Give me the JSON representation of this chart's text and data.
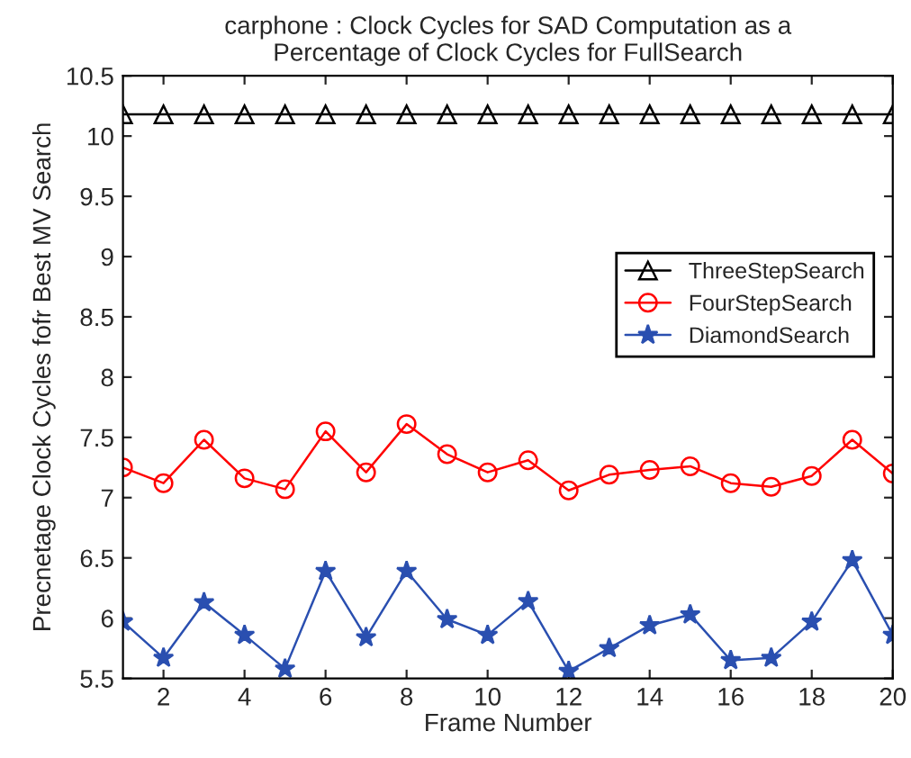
{
  "chart_data": {
    "type": "line",
    "title": "carphone : Clock Cycles for SAD Computation as a\nPercentage of Clock Cycles for FullSearch",
    "xlabel": "Frame Number",
    "ylabel": "Precnetage Clock Cycles fofr Best MV Search",
    "x": [
      1,
      2,
      3,
      4,
      5,
      6,
      7,
      8,
      9,
      10,
      11,
      12,
      13,
      14,
      15,
      16,
      17,
      18,
      19,
      20
    ],
    "series": [
      {
        "name": "ThreeStepSearch",
        "color": "#000000",
        "marker": "triangle",
        "values": [
          10.18,
          10.18,
          10.18,
          10.18,
          10.18,
          10.18,
          10.18,
          10.18,
          10.18,
          10.18,
          10.18,
          10.18,
          10.18,
          10.18,
          10.18,
          10.18,
          10.18,
          10.18,
          10.18,
          10.18
        ]
      },
      {
        "name": "FourStepSearch",
        "color": "#ff0000",
        "marker": "circle",
        "values": [
          7.25,
          7.12,
          7.48,
          7.16,
          7.07,
          7.55,
          7.21,
          7.61,
          7.36,
          7.21,
          7.31,
          7.06,
          7.19,
          7.23,
          7.26,
          7.12,
          7.09,
          7.18,
          7.48,
          7.2
        ]
      },
      {
        "name": "DiamondSearch",
        "color": "#2a4fb0",
        "marker": "star",
        "values": [
          5.97,
          5.67,
          6.13,
          5.86,
          5.58,
          6.39,
          5.84,
          6.39,
          5.99,
          5.86,
          6.14,
          5.56,
          5.75,
          5.94,
          6.03,
          5.65,
          5.67,
          5.97,
          6.48,
          5.86
        ]
      }
    ],
    "xlim": [
      1,
      20
    ],
    "xticks": [
      2,
      4,
      6,
      8,
      10,
      12,
      14,
      16,
      18,
      20
    ],
    "ylim": [
      5.5,
      10.5
    ],
    "yticks": [
      5.5,
      6,
      6.5,
      7,
      7.5,
      8,
      8.5,
      9,
      9.5,
      10,
      10.5
    ],
    "legend": "right",
    "grid": false,
    "line_style": "solid"
  }
}
